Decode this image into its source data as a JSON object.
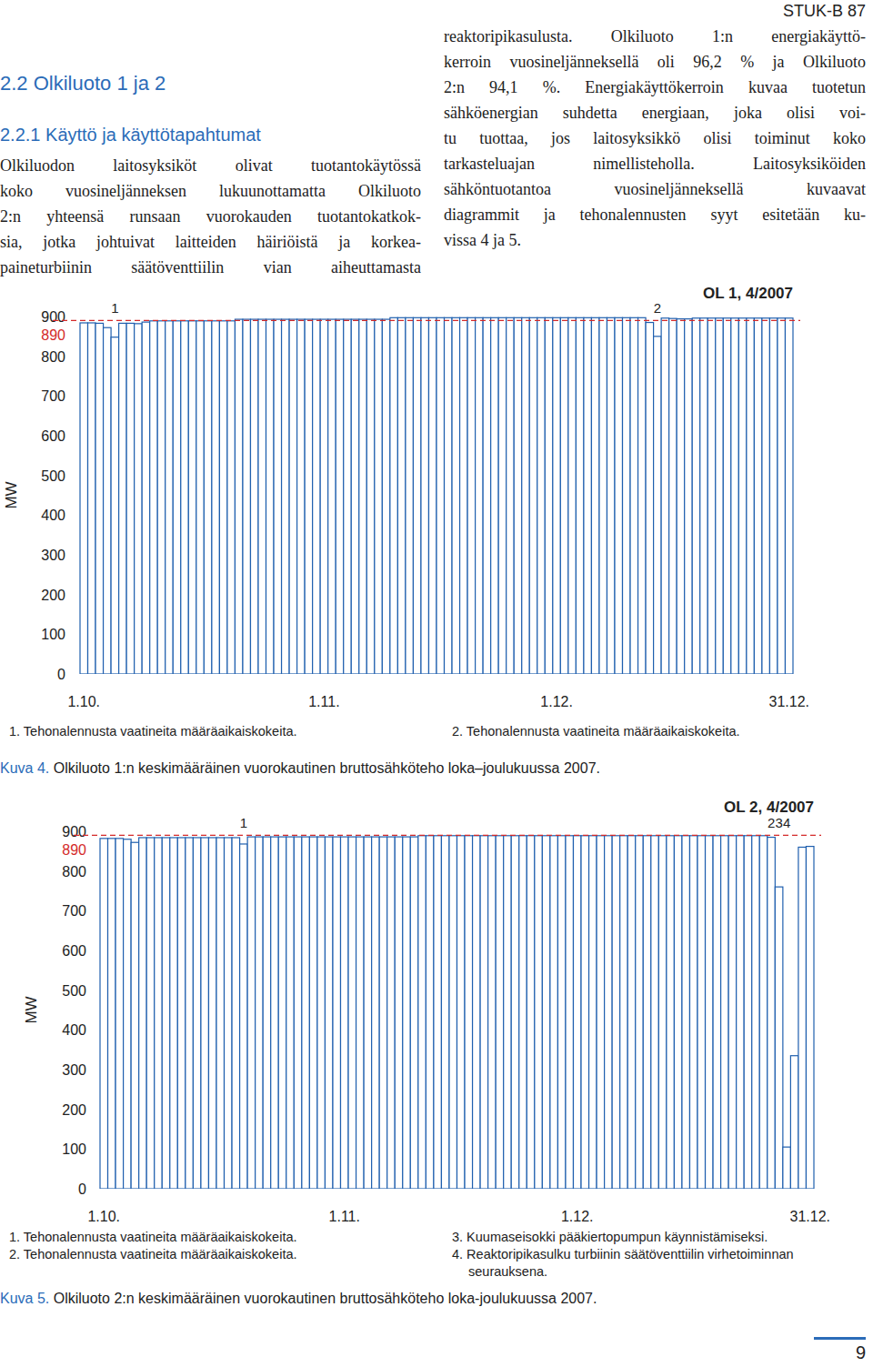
{
  "header": {
    "report": "STUK-B 87",
    "page_number": "9"
  },
  "section": {
    "heading": "2.2 Olkiluoto 1 ja 2",
    "subheading": "2.2.1 Käyttö ja käyttötapahtumat"
  },
  "body": {
    "left_lines": [
      "Olkiluodon laitosyksiköt olivat tuotantokäytössä",
      "koko vuosineljänneksen lukuunottamatta Olkiluoto",
      "2:n yhteensä runsaan vuorokauden tuotantokatkok-",
      "sia, jotka johtuivat laitteiden häiriöistä ja korkea-",
      "paineturbiinin säätöventtiilin vian aiheuttamasta"
    ],
    "right_lines": [
      "reaktoripikasulusta. Olkiluoto 1:n energiakäyttö-",
      "kerroin vuosineljänneksellä oli 96,2 % ja Olkiluoto",
      "2:n 94,1 %. Energiakäyttökerroin kuvaa tuotetun",
      "sähköenergian suhdetta energiaan, joka olisi voi-",
      "tu tuottaa, jos laitosyksikkö olisi toiminut koko",
      "tarkasteluajan nimellisteholla. Laitosyksiköiden",
      "sähköntuotantoa vuosineljänneksellä kuvaavat",
      "diagrammit ja tehonalennusten syyt esitetään ku-",
      "vissa 4 ja 5."
    ]
  },
  "chart_data": [
    {
      "type": "bar",
      "title": "OL 1, 4/2007",
      "y_label": "MW",
      "categories": [
        "1.10.",
        null,
        null,
        null,
        null,
        null,
        null,
        null,
        null,
        null,
        null,
        null,
        null,
        null,
        null,
        null,
        null,
        null,
        null,
        null,
        null,
        null,
        null,
        null,
        null,
        null,
        null,
        null,
        null,
        null,
        null,
        "1.11.",
        null,
        null,
        null,
        null,
        null,
        null,
        null,
        null,
        null,
        null,
        null,
        null,
        null,
        null,
        null,
        null,
        null,
        null,
        null,
        null,
        null,
        null,
        null,
        null,
        null,
        null,
        null,
        null,
        null,
        "1.12.",
        null,
        null,
        null,
        null,
        null,
        null,
        null,
        null,
        null,
        null,
        null,
        null,
        null,
        null,
        null,
        null,
        null,
        null,
        null,
        null,
        null,
        null,
        null,
        null,
        null,
        null,
        null,
        null,
        null,
        "31.12."
      ],
      "values": [
        884,
        884,
        883,
        872,
        848,
        883,
        883,
        882,
        886,
        889,
        889,
        889,
        889,
        889,
        889,
        889,
        889,
        889,
        889,
        889,
        893,
        893,
        893,
        893,
        893,
        893,
        893,
        893,
        893,
        893,
        893,
        893,
        893,
        893,
        893,
        893,
        893,
        893,
        893,
        893,
        897,
        897,
        897,
        897,
        897,
        897,
        897,
        897,
        897,
        897,
        897,
        897,
        897,
        897,
        897,
        897,
        897,
        897,
        897,
        897,
        897,
        897,
        897,
        897,
        897,
        897,
        897,
        897,
        897,
        897,
        897,
        897,
        897,
        885,
        850,
        896,
        895,
        894,
        894,
        896,
        896,
        896,
        896,
        896,
        896,
        896,
        896,
        896,
        896,
        896,
        896,
        896
      ],
      "color": "#1f5fae",
      "ylim": [
        0,
        900
      ],
      "yticks": [
        0,
        100,
        200,
        300,
        400,
        500,
        600,
        700,
        800,
        900
      ],
      "reference_line": {
        "value": 890,
        "color": "#d42a2a",
        "line_style": "dashed"
      },
      "annotations": [
        {
          "text": "1",
          "index": 4
        },
        {
          "text": "2",
          "index": 74
        }
      ],
      "notes": [
        "1. Tehonalennusta vaatineita määräaikaiskokeita.",
        "2. Tehonalennusta vaatineita määräaikaiskokeita."
      ],
      "caption": {
        "label": "Kuva 4.",
        "text": " Olkiluoto 1:n keskimääräinen vuorokautinen bruttosähköteho loka–joulukuussa 2007."
      }
    },
    {
      "type": "bar",
      "title": "OL 2, 4/2007",
      "y_label": "MW",
      "categories": [
        "1.10.",
        null,
        null,
        null,
        null,
        null,
        null,
        null,
        null,
        null,
        null,
        null,
        null,
        null,
        null,
        null,
        null,
        null,
        null,
        null,
        null,
        null,
        null,
        null,
        null,
        null,
        null,
        null,
        null,
        null,
        null,
        "1.11.",
        null,
        null,
        null,
        null,
        null,
        null,
        null,
        null,
        null,
        null,
        null,
        null,
        null,
        null,
        null,
        null,
        null,
        null,
        null,
        null,
        null,
        null,
        null,
        null,
        null,
        null,
        null,
        null,
        null,
        "1.12.",
        null,
        null,
        null,
        null,
        null,
        null,
        null,
        null,
        null,
        null,
        null,
        null,
        null,
        null,
        null,
        null,
        null,
        null,
        null,
        null,
        null,
        null,
        null,
        null,
        null,
        null,
        null,
        null,
        null,
        "31.12."
      ],
      "values": [
        882,
        882,
        882,
        880,
        872,
        884,
        884,
        884,
        884,
        884,
        884,
        884,
        884,
        884,
        884,
        884,
        884,
        884,
        868,
        886,
        886,
        886,
        886,
        886,
        886,
        886,
        886,
        886,
        886,
        886,
        886,
        886,
        886,
        886,
        886,
        886,
        886,
        886,
        886,
        886,
        886,
        889,
        889,
        889,
        889,
        889,
        889,
        889,
        889,
        889,
        889,
        889,
        889,
        889,
        889,
        889,
        889,
        889,
        889,
        889,
        889,
        889,
        889,
        889,
        889,
        889,
        889,
        889,
        889,
        889,
        889,
        889,
        889,
        889,
        889,
        889,
        889,
        889,
        889,
        889,
        889,
        889,
        889,
        889,
        889,
        889,
        885,
        760,
        105,
        335,
        860,
        862
      ],
      "color": "#1f5fae",
      "ylim": [
        0,
        900
      ],
      "yticks": [
        0,
        100,
        200,
        300,
        400,
        500,
        600,
        700,
        800,
        900
      ],
      "reference_line": {
        "value": 890,
        "color": "#d42a2a",
        "line_style": "dashed"
      },
      "annotations": [
        {
          "text": "1",
          "index": 18
        },
        {
          "text": "2",
          "index": 86
        },
        {
          "text": "3",
          "index": 87
        },
        {
          "text": "4",
          "index": 88
        }
      ],
      "notes": [
        "1. Tehonalennusta vaatineita määräaikaiskokeita.",
        "2. Tehonalennusta vaatineita määräaikaiskokeita.",
        "3. Kuumaseisokki pääkiertopumpun käynnistämiseksi.",
        "4. Reaktoripikasulku turbiinin säätöventtiilin virhetoiminnan seurauksena."
      ],
      "caption": {
        "label": "Kuva 5.",
        "text": " Olkiluoto 2:n keskimääräinen vuorokautinen bruttosähköteho loka-joulukuussa 2007."
      }
    }
  ]
}
